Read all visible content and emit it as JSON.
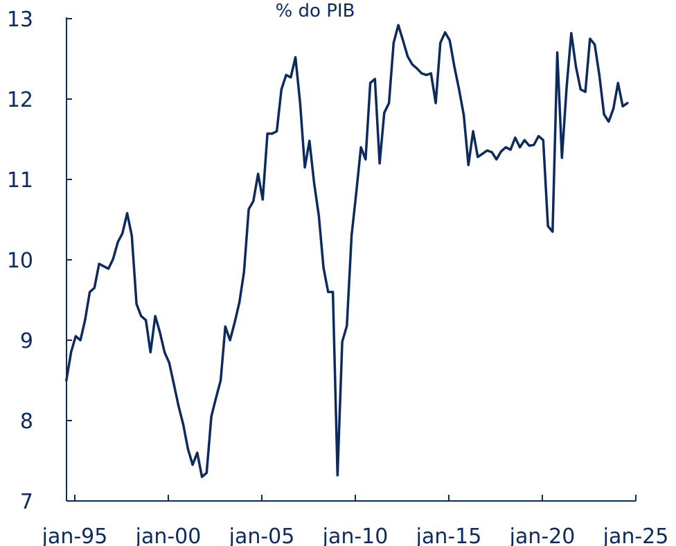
{
  "chart_data": {
    "type": "line",
    "title": "% do PIB",
    "xlabel": "",
    "ylabel": "",
    "ylim": [
      7,
      13
    ],
    "yticks": [
      "7",
      "8",
      "9",
      "10",
      "11",
      "12",
      "13"
    ],
    "xlim": [
      1994.55,
      2025.0
    ],
    "xticks": [
      {
        "label": "jan-95",
        "value": 1995.0
      },
      {
        "label": "jan-00",
        "value": 2000.0
      },
      {
        "label": "jan-05",
        "value": 2005.0
      },
      {
        "label": "jan-10",
        "value": 2010.0
      },
      {
        "label": "jan-15",
        "value": 2015.0
      },
      {
        "label": "jan-20",
        "value": 2020.0
      },
      {
        "label": "jan-25",
        "value": 2025.0
      }
    ],
    "grid": false,
    "line_color": "#0b2a5e",
    "series": [
      {
        "x": [
          1994.55,
          1994.8,
          1995.05,
          1995.3,
          1995.55,
          1995.8,
          1996.05,
          1996.3,
          1996.55,
          1996.8,
          1997.05,
          1997.3,
          1997.55,
          1997.8,
          1998.05,
          1998.3,
          1998.55,
          1998.8,
          1999.05,
          1999.3,
          1999.55,
          1999.8,
          2000.05,
          2000.3,
          2000.55,
          2000.8,
          2001.05,
          2001.3,
          2001.55,
          2001.8,
          2002.05,
          2002.3,
          2002.55,
          2002.8,
          2003.05,
          2003.3,
          2003.55,
          2003.8,
          2004.05,
          2004.3,
          2004.55,
          2004.8,
          2005.05,
          2005.3,
          2005.55,
          2005.8,
          2006.05,
          2006.3,
          2006.55,
          2006.8,
          2007.05,
          2007.3,
          2007.55,
          2007.8,
          2008.05,
          2008.3,
          2008.55,
          2008.8,
          2009.05,
          2009.3,
          2009.55,
          2009.8,
          2010.05,
          2010.3,
          2010.55,
          2010.8,
          2011.05,
          2011.3,
          2011.55,
          2011.8,
          2012.05,
          2012.3,
          2012.55,
          2012.8,
          2013.05,
          2013.3,
          2013.55,
          2013.8,
          2014.05,
          2014.3,
          2014.55,
          2014.8,
          2015.05,
          2015.3,
          2015.55,
          2015.8,
          2016.05,
          2016.3,
          2016.55,
          2016.8,
          2017.05,
          2017.3,
          2017.55,
          2017.8,
          2018.05,
          2018.3,
          2018.55,
          2018.8,
          2019.05,
          2019.3,
          2019.55,
          2019.8,
          2020.05,
          2020.3,
          2020.55,
          2020.8,
          2021.05,
          2021.3,
          2021.55,
          2021.8,
          2022.05,
          2022.3,
          2022.55,
          2022.8,
          2023.05,
          2023.3,
          2023.55,
          2023.8,
          2024.05,
          2024.3,
          2024.55
        ],
        "values": [
          8.5,
          8.85,
          9.05,
          9.0,
          9.25,
          9.6,
          9.65,
          9.95,
          9.92,
          9.89,
          10.01,
          10.22,
          10.33,
          10.58,
          10.3,
          9.45,
          9.3,
          9.25,
          8.85,
          9.3,
          9.1,
          8.85,
          8.72,
          8.45,
          8.18,
          7.95,
          7.65,
          7.45,
          7.6,
          7.3,
          7.35,
          8.05,
          8.28,
          8.5,
          9.17,
          9.0,
          9.22,
          9.47,
          9.85,
          10.63,
          10.73,
          11.07,
          10.75,
          11.57,
          11.57,
          11.6,
          12.12,
          12.3,
          12.27,
          12.52,
          11.95,
          11.15,
          11.48,
          10.95,
          10.55,
          9.9,
          9.6,
          9.6,
          7.32,
          8.98,
          9.18,
          10.3,
          10.83,
          11.4,
          11.25,
          12.2,
          12.25,
          11.2,
          11.83,
          11.95,
          12.7,
          12.92,
          12.73,
          12.53,
          12.43,
          12.38,
          12.32,
          12.3,
          12.32,
          11.95,
          12.7,
          12.83,
          12.73,
          12.4,
          12.12,
          11.8,
          11.18,
          11.6,
          11.28,
          11.32,
          11.36,
          11.34,
          11.25,
          11.35,
          11.4,
          11.37,
          11.52,
          11.4,
          11.49,
          11.42,
          11.43,
          11.54,
          11.49,
          10.42,
          10.35,
          12.58,
          11.27,
          12.15,
          12.82,
          12.4,
          12.12,
          12.09,
          12.75,
          12.68,
          12.3,
          11.81,
          11.72,
          11.88,
          12.2,
          11.91,
          11.95
        ]
      }
    ]
  }
}
